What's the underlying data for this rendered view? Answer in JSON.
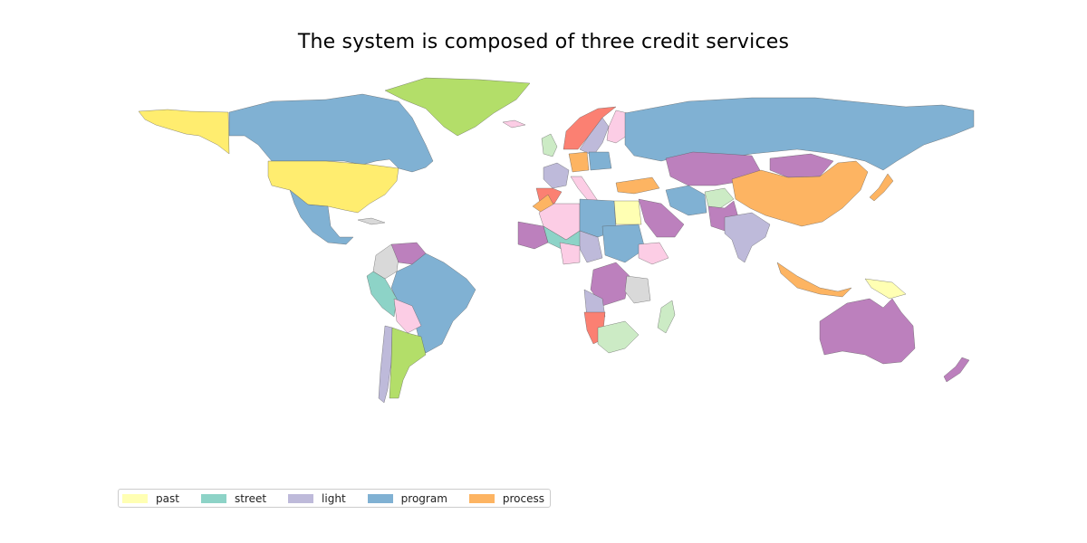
{
  "title": "The system is composed of three credit services",
  "legend": {
    "items": [
      {
        "label": "past",
        "color": "#ffffb3"
      },
      {
        "label": "street",
        "color": "#8dd3c7"
      },
      {
        "label": "light",
        "color": "#bebada"
      },
      {
        "label": "program",
        "color": "#80b1d3"
      },
      {
        "label": "process",
        "color": "#fdb462"
      }
    ]
  },
  "map": {
    "projection": "equirectangular",
    "palette": {
      "past": "#ffffb3",
      "street": "#8dd3c7",
      "light": "#bebada",
      "program": "#80b1d3",
      "process": "#fdb462",
      "extra_red": "#fb8072",
      "extra_purple": "#bc80bd",
      "extra_green": "#b3de69",
      "extra_pink": "#fccde5",
      "extra_gray": "#d9d9d9",
      "extra_mint": "#ccebc5",
      "extra_yellow": "#ffed6f"
    },
    "regions": [
      {
        "name": "Alaska",
        "group": "extra_yellow"
      },
      {
        "name": "Canada",
        "group": "program"
      },
      {
        "name": "Greenland",
        "group": "extra_green"
      },
      {
        "name": "United States",
        "group": "extra_yellow"
      },
      {
        "name": "Mexico",
        "group": "program"
      },
      {
        "name": "Cuba",
        "group": "extra_gray"
      },
      {
        "name": "Colombia",
        "group": "extra_gray"
      },
      {
        "name": "Venezuela",
        "group": "extra_purple"
      },
      {
        "name": "Brazil",
        "group": "program"
      },
      {
        "name": "Peru",
        "group": "street"
      },
      {
        "name": "Bolivia",
        "group": "extra_pink"
      },
      {
        "name": "Chile",
        "group": "light"
      },
      {
        "name": "Argentina",
        "group": "extra_green"
      },
      {
        "name": "Iceland",
        "group": "extra_pink"
      },
      {
        "name": "Norway",
        "group": "extra_red"
      },
      {
        "name": "Sweden",
        "group": "light"
      },
      {
        "name": "Finland",
        "group": "extra_pink"
      },
      {
        "name": "United Kingdom",
        "group": "extra_mint"
      },
      {
        "name": "France",
        "group": "light"
      },
      {
        "name": "Spain",
        "group": "extra_red"
      },
      {
        "name": "Germany",
        "group": "process"
      },
      {
        "name": "Poland",
        "group": "program"
      },
      {
        "name": "Italy",
        "group": "extra_pink"
      },
      {
        "name": "Turkey",
        "group": "process"
      },
      {
        "name": "Russia",
        "group": "program"
      },
      {
        "name": "Kazakhstan",
        "group": "extra_purple"
      },
      {
        "name": "Mongolia",
        "group": "extra_purple"
      },
      {
        "name": "China",
        "group": "process"
      },
      {
        "name": "Iran",
        "group": "program"
      },
      {
        "name": "Afghanistan",
        "group": "extra_mint"
      },
      {
        "name": "Pakistan",
        "group": "extra_purple"
      },
      {
        "name": "India",
        "group": "light"
      },
      {
        "name": "Saudi Arabia",
        "group": "extra_purple"
      },
      {
        "name": "Japan",
        "group": "process"
      },
      {
        "name": "Morocco",
        "group": "process"
      },
      {
        "name": "Algeria",
        "group": "extra_pink"
      },
      {
        "name": "Mali",
        "group": "extra_purple"
      },
      {
        "name": "Niger",
        "group": "street"
      },
      {
        "name": "Libya",
        "group": "program"
      },
      {
        "name": "Egypt",
        "group": "past"
      },
      {
        "name": "Chad",
        "group": "light"
      },
      {
        "name": "Sudan",
        "group": "program"
      },
      {
        "name": "Ethiopia",
        "group": "extra_pink"
      },
      {
        "name": "Nigeria",
        "group": "extra_pink"
      },
      {
        "name": "DR Congo",
        "group": "extra_purple"
      },
      {
        "name": "Angola",
        "group": "light"
      },
      {
        "name": "Tanzania",
        "group": "extra_gray"
      },
      {
        "name": "Namibia",
        "group": "extra_red"
      },
      {
        "name": "South Africa",
        "group": "extra_mint"
      },
      {
        "name": "Madagascar",
        "group": "extra_mint"
      },
      {
        "name": "Indonesia",
        "group": "process"
      },
      {
        "name": "Papua New Guinea",
        "group": "past"
      },
      {
        "name": "Australia",
        "group": "extra_purple"
      },
      {
        "name": "New Zealand",
        "group": "extra_purple"
      }
    ]
  }
}
